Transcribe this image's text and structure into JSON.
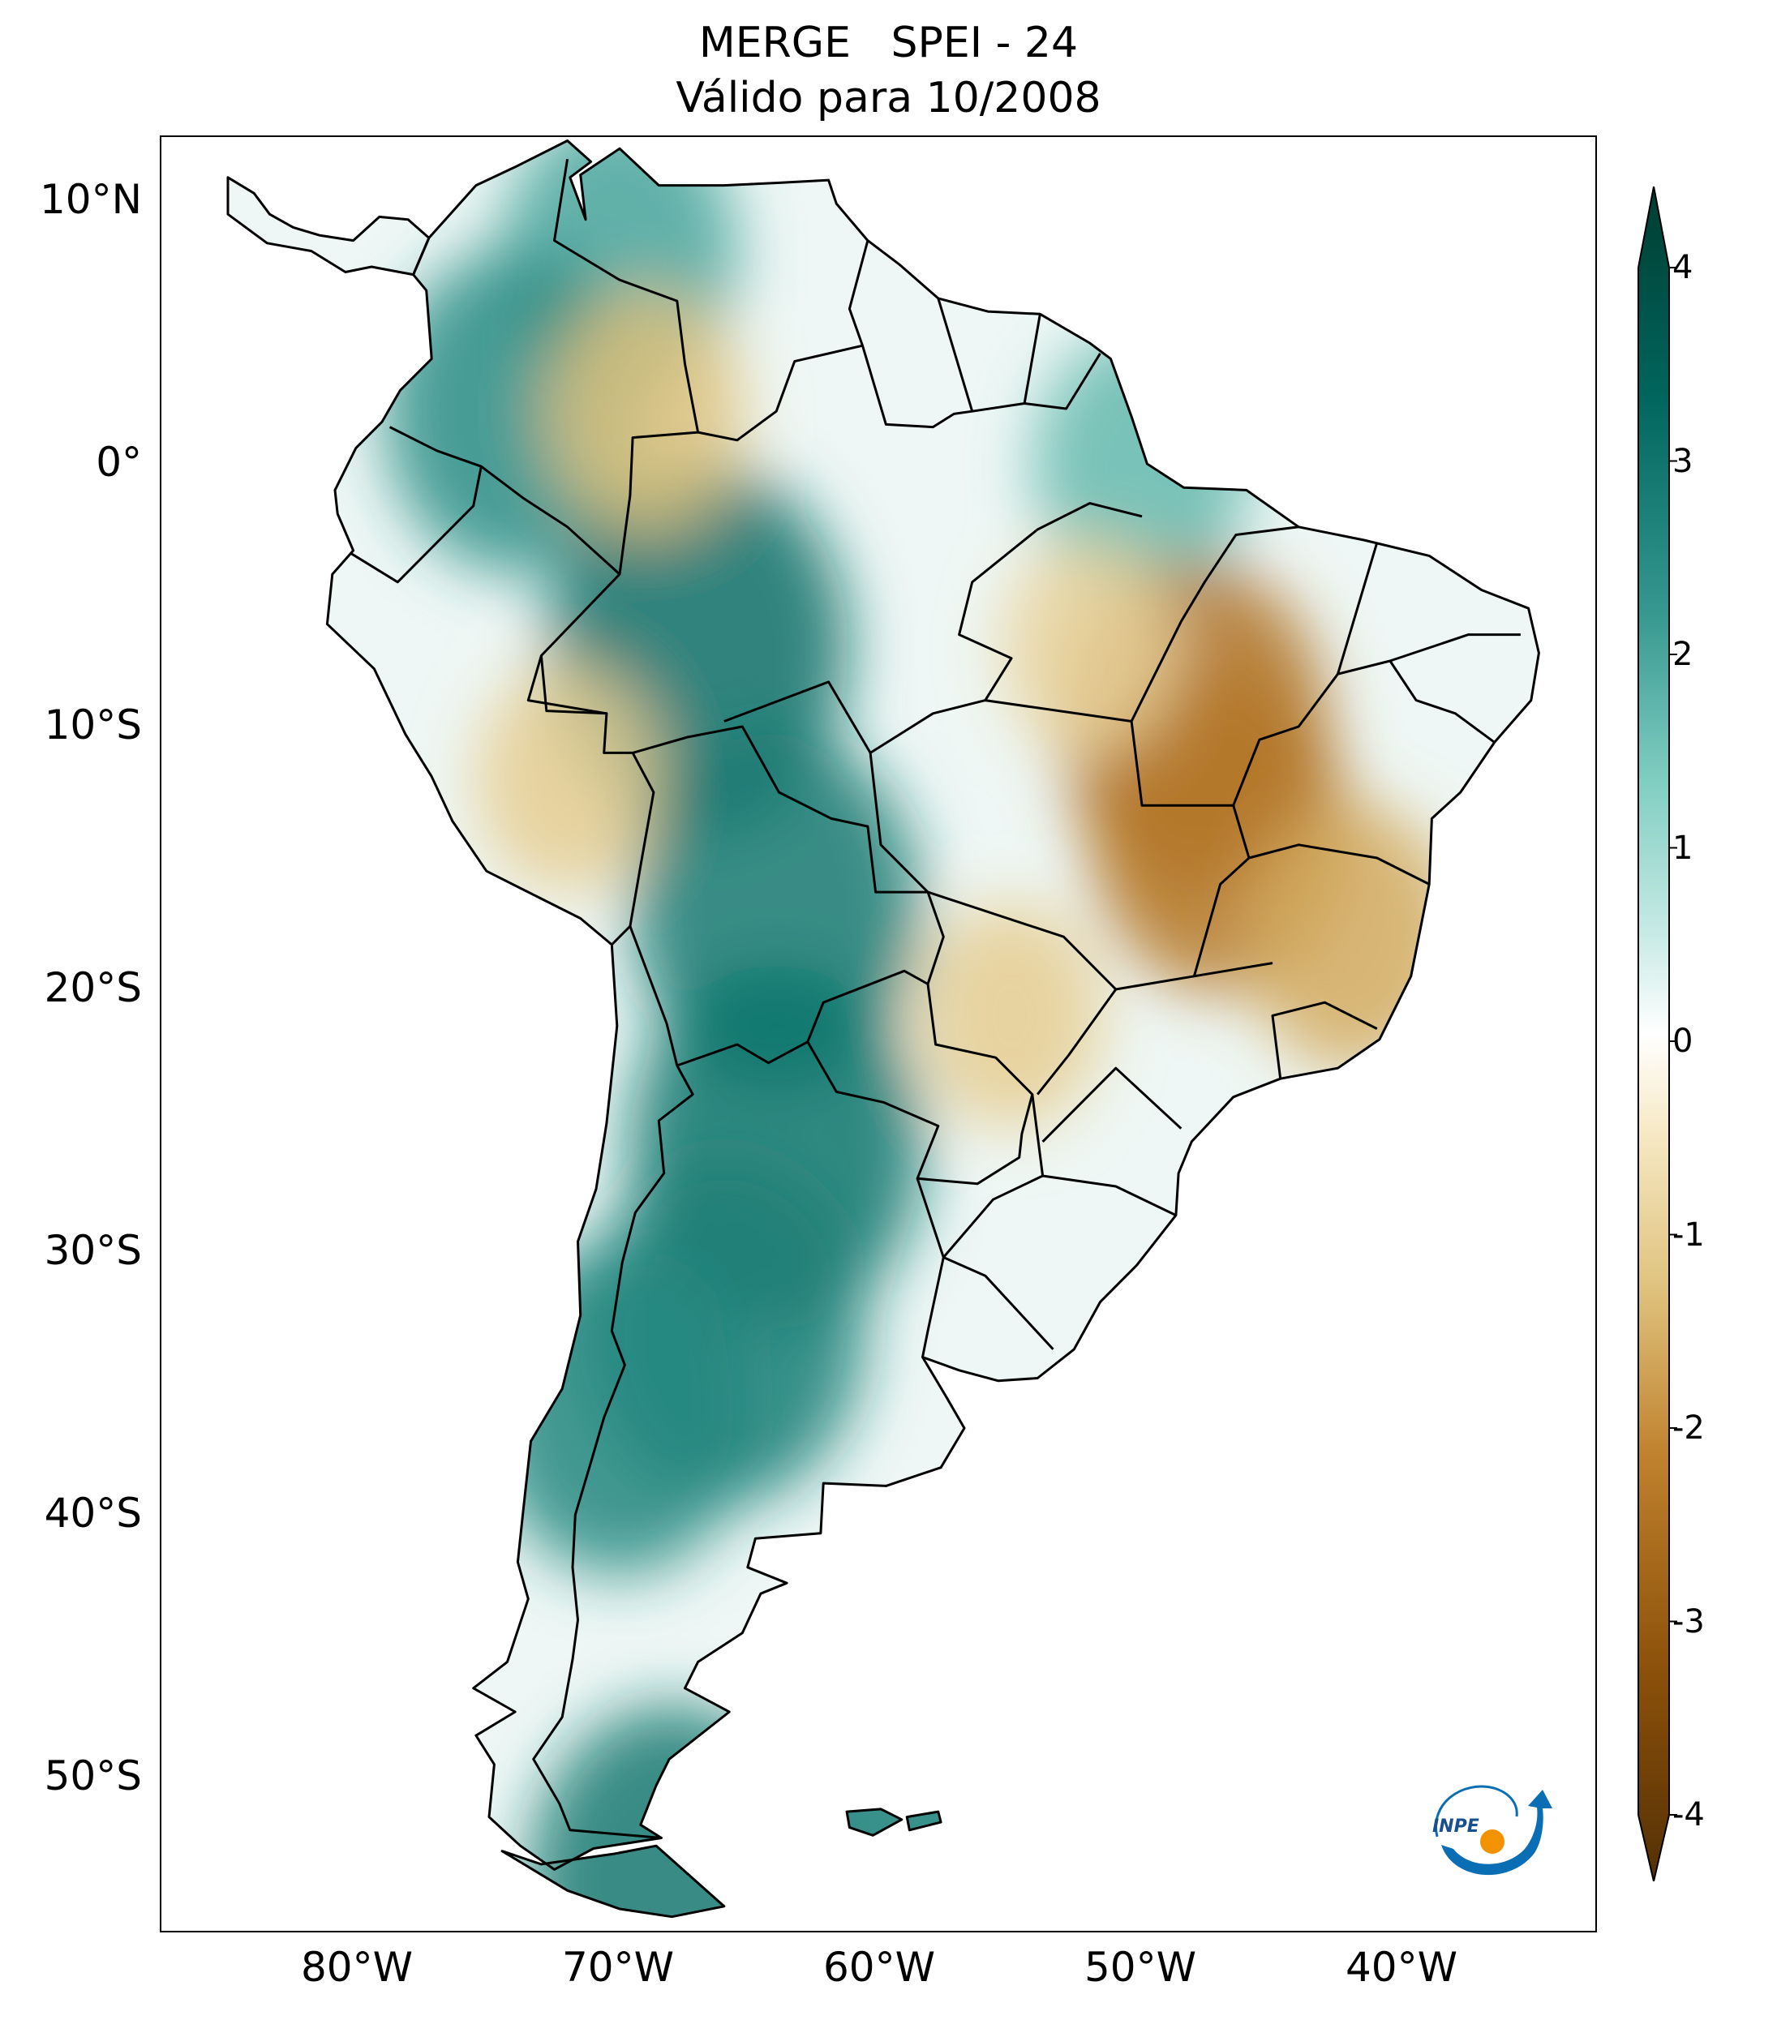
{
  "title": {
    "line1": "MERGE   SPEI - 24",
    "line2": "Válido para 10/2008"
  },
  "map": {
    "region": "South America",
    "variable": "SPEI - 24",
    "lon_range": [
      -85,
      -30
    ],
    "lat_range": [
      -56,
      13
    ],
    "lat_ticks": [
      {
        "value": 10,
        "label": "10°N"
      },
      {
        "value": 0,
        "label": "0°"
      },
      {
        "value": -10,
        "label": "10°S"
      },
      {
        "value": -20,
        "label": "20°S"
      },
      {
        "value": -30,
        "label": "30°S"
      },
      {
        "value": -40,
        "label": "40°S"
      },
      {
        "value": -50,
        "label": "50°S"
      }
    ],
    "lon_ticks": [
      {
        "value": -80,
        "label": "80°W"
      },
      {
        "value": -70,
        "label": "70°W"
      },
      {
        "value": -60,
        "label": "60°W"
      },
      {
        "value": -50,
        "label": "50°W"
      },
      {
        "value": -40,
        "label": "40°W"
      }
    ],
    "wet_anomalies": [
      {
        "area": "Venezuela / Colombia north",
        "lon": -70,
        "lat": 8,
        "intensity": 1.8
      },
      {
        "area": "Colombia / Ecuador west",
        "lon": -74,
        "lat": 2,
        "intensity": 2.2
      },
      {
        "area": "western Amazonas",
        "lon": -67,
        "lat": -7,
        "intensity": 2.8
      },
      {
        "area": "Bolivia",
        "lon": -64,
        "lat": -17,
        "intensity": 2.6
      },
      {
        "area": "northern Argentina / Paraguay",
        "lon": -64,
        "lat": -26,
        "intensity": 2.7
      },
      {
        "area": "central Argentina",
        "lon": -66,
        "lat": -33,
        "intensity": 2.5
      },
      {
        "area": "Chile / Andes",
        "lon": -70,
        "lat": -36,
        "intensity": 2.3
      },
      {
        "area": "Tierra del Fuego",
        "lon": -68,
        "lat": -54,
        "intensity": 2.6
      },
      {
        "area": "Pará east",
        "lon": -50,
        "lat": 0,
        "intensity": 1.5
      },
      {
        "area": "Falkland Islands",
        "lon": -59,
        "lat": -51.7,
        "intensity": 2.5
      }
    ],
    "dry_anomalies": [
      {
        "area": "Tocantins / Maranhão",
        "lon": -48,
        "lat": -10,
        "intensity": -2.3
      },
      {
        "area": "Goiás north",
        "lon": -47,
        "lat": -14,
        "intensity": -2.2
      },
      {
        "area": "Colombia / Brazil border",
        "lon": -69,
        "lat": 2,
        "intensity": -1.2
      },
      {
        "area": "Peru central",
        "lon": -72,
        "lat": -12,
        "intensity": -1.0
      },
      {
        "area": "Mato Grosso do Sul",
        "lon": -55,
        "lat": -21,
        "intensity": -1.0
      },
      {
        "area": "Minas Gerais east",
        "lon": -42,
        "lat": -18,
        "intensity": -1.5
      },
      {
        "area": "Pará south",
        "lon": -52,
        "lat": -7,
        "intensity": -0.9
      }
    ]
  },
  "colorbar": {
    "min": -4,
    "max": 4,
    "ticks": [
      {
        "value": 4,
        "label": "4"
      },
      {
        "value": 3,
        "label": "3"
      },
      {
        "value": 2,
        "label": "2"
      },
      {
        "value": 1,
        "label": "1"
      },
      {
        "value": 0,
        "label": "0"
      },
      {
        "value": -1,
        "label": "-1"
      },
      {
        "value": -2,
        "label": "-2"
      },
      {
        "value": -3,
        "label": "-3"
      },
      {
        "value": -4,
        "label": "-4"
      }
    ],
    "extend": "both",
    "colors": {
      "wet_max": "#003c30",
      "wet_strong": "#01665e",
      "wet_mid": "#35978f",
      "wet_light": "#80cdc1",
      "wet_pale": "#c7eae5",
      "neutral": "#ffffff",
      "dry_pale": "#f6e8c3",
      "dry_light": "#dfc27d",
      "dry_mid": "#bf812d",
      "dry_strong": "#8c510a",
      "dry_max": "#543005"
    }
  },
  "logo": {
    "text": "INPE",
    "colors": {
      "arc": "#0a6eb5",
      "sun": "#f39200"
    }
  }
}
